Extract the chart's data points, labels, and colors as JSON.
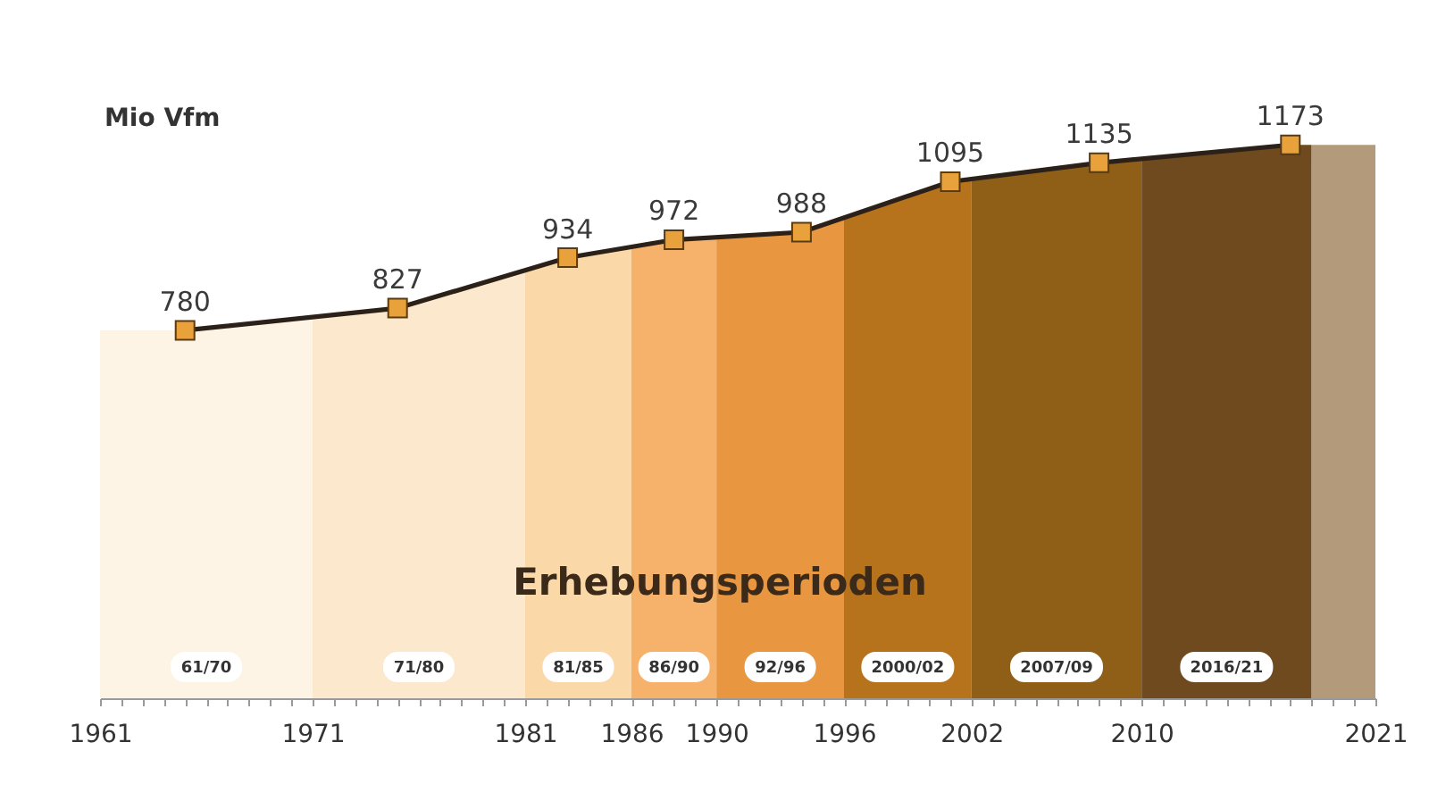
{
  "chart_data": {
    "type": "line",
    "ylabel": "Mio Vfm",
    "x": [
      1965,
      1975,
      1983,
      1988,
      1994,
      2001,
      2008,
      2017
    ],
    "series": [
      {
        "color": "#2b2118",
        "colors": [
          "#e9a23b",
          "#e9a23b",
          "#e9a23b",
          "#e9a23b",
          "#e9a23b",
          "#e9a23b",
          "#e9a23b",
          "#e9a23b"
        ],
        "values": [
          780,
          827,
          934,
          972,
          988,
          1095,
          1135,
          1173
        ]
      }
    ],
    "marker": "square",
    "data_labels": true,
    "xlim": [
      1961,
      2021
    ],
    "xticks": [
      1961,
      {
        "value": 1962,
        "label": null
      },
      {
        "value": 1963,
        "label": null
      },
      {
        "value": 1964,
        "label": null
      },
      {
        "value": 1965,
        "label": null
      },
      {
        "value": 1966,
        "label": null
      },
      {
        "value": 1967,
        "label": null
      },
      {
        "value": 1968,
        "label": null
      },
      {
        "value": 1969,
        "label": null
      },
      {
        "value": 1970,
        "label": null
      },
      1971,
      {
        "value": 1972,
        "label": null
      },
      {
        "value": 1973,
        "label": null
      },
      {
        "value": 1974,
        "label": null
      },
      {
        "value": 1975,
        "label": null
      },
      {
        "value": 1976,
        "label": null
      },
      {
        "value": 1977,
        "label": null
      },
      {
        "value": 1978,
        "label": null
      },
      {
        "value": 1979,
        "label": null
      },
      {
        "value": 1980,
        "label": null
      },
      1981,
      {
        "value": 1982,
        "label": null
      },
      {
        "value": 1983,
        "label": null
      },
      {
        "value": 1984,
        "label": null
      },
      {
        "value": 1985,
        "label": null
      },
      1986,
      {
        "value": 1987,
        "label": null
      },
      {
        "value": 1988,
        "label": null
      },
      {
        "value": 1989,
        "label": null
      },
      1990,
      {
        "value": 1991,
        "label": null
      },
      {
        "value": 1992,
        "label": null
      },
      {
        "value": 1993,
        "label": null
      },
      {
        "value": 1994,
        "label": null
      },
      {
        "value": 1995,
        "label": null
      },
      1996,
      {
        "value": 1997,
        "label": null
      },
      {
        "value": 1998,
        "label": null
      },
      {
        "value": 1999,
        "label": null
      },
      {
        "value": 2000,
        "label": null
      },
      {
        "value": 2001,
        "label": null
      },
      2002,
      {
        "value": 2003,
        "label": null
      },
      {
        "value": 2004,
        "label": null
      },
      {
        "value": 2005,
        "label": null
      },
      {
        "value": 2006,
        "label": null
      },
      {
        "value": 2007,
        "label": null
      },
      {
        "value": 2008,
        "label": null
      },
      {
        "value": 2009,
        "label": null
      },
      2010,
      {
        "value": 2011,
        "label": null
      },
      {
        "value": 2012,
        "label": null
      },
      {
        "value": 2013,
        "label": null
      },
      {
        "value": 2014,
        "label": null
      },
      {
        "value": 2015,
        "label": null
      },
      {
        "value": 2016,
        "label": null
      },
      {
        "value": 2017,
        "label": null
      },
      {
        "value": 2018,
        "label": null
      },
      {
        "value": 2019,
        "label": null
      },
      {
        "value": 2020,
        "label": null
      },
      2021
    ],
    "bands": [
      {
        "axis": "x",
        "from": 1961,
        "to": 1971,
        "label": "61/70",
        "color": "#fdf4e5"
      },
      {
        "axis": "x",
        "from": 1971,
        "to": 1981,
        "label": "71/80",
        "color": "#fce8cc"
      },
      {
        "axis": "x",
        "from": 1981,
        "to": 1986,
        "label": "81/85",
        "color": "#fbd8a7"
      },
      {
        "axis": "x",
        "from": 1986,
        "to": 1990,
        "label": "86/90",
        "color": "#f6b26b"
      },
      {
        "axis": "x",
        "from": 1990,
        "to": 1996,
        "label": "92/96",
        "color": "#e8963f"
      },
      {
        "axis": "x",
        "from": 1996,
        "to": 2002,
        "label": "2000/02",
        "color": "#b7731c"
      },
      {
        "axis": "x",
        "from": 2002,
        "to": 2010,
        "label": "2007/09",
        "color": "#8f5f18"
      },
      {
        "axis": "x",
        "from": 2010,
        "to": 2018,
        "label": "2016/21",
        "color": "#6e4a1e"
      },
      {
        "axis": "x",
        "from": 2018,
        "to": 2021,
        "color": "#b39a7b"
      }
    ],
    "annotations": [
      "Erhebungsperioden"
    ]
  }
}
